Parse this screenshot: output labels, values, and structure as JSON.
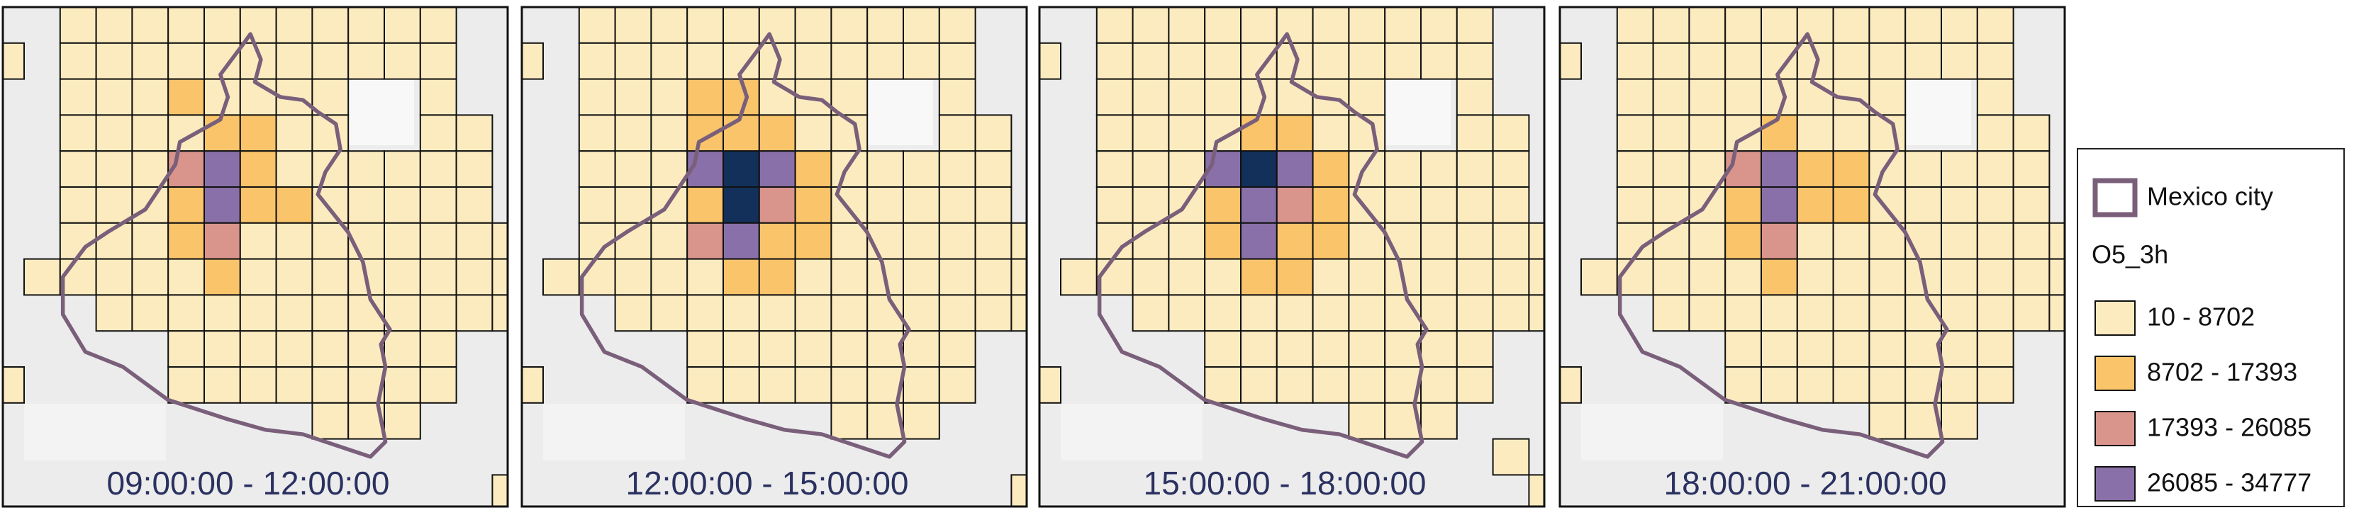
{
  "panels": [
    {
      "label": "09:00:00 - 12:00:00"
    },
    {
      "label": "12:00:00 - 15:00:00"
    },
    {
      "label": "15:00:00 - 18:00:00"
    },
    {
      "label": "18:00:00 - 21:00:00"
    }
  ],
  "legend": {
    "boundary": "Mexico city",
    "title": "O5_3h",
    "classes": [
      {
        "label": "10 - 8702",
        "color": "#fdebc0"
      },
      {
        "label": "8702 - 17393",
        "color": "#f9c46a"
      },
      {
        "label": "17393 - 26085",
        "color": "#d9948c"
      },
      {
        "label": "26085 - 34777",
        "color": "#8a70a8"
      }
    ]
  }
}
